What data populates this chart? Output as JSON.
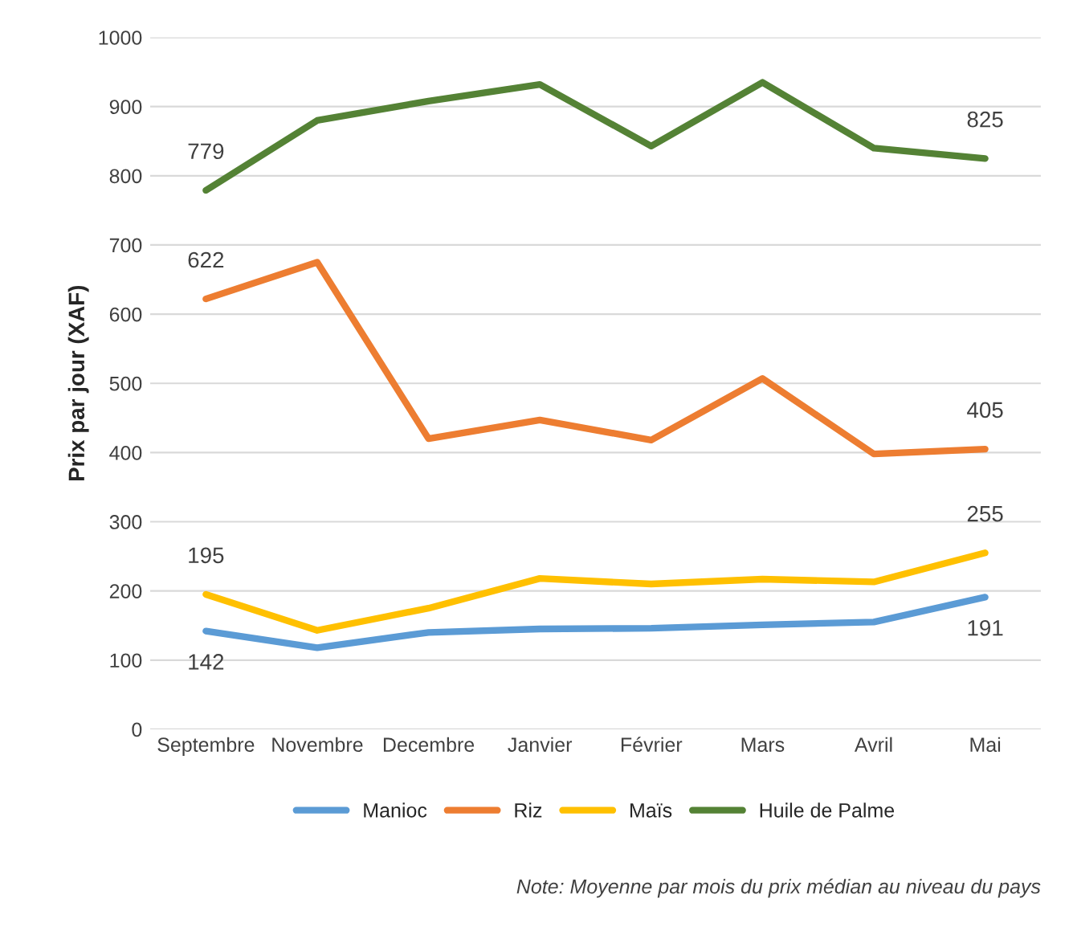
{
  "chart_data": {
    "type": "line",
    "ylabel": "Prix par jour (XAF)",
    "categories": [
      "Septembre",
      "Novembre",
      "Decembre",
      "Janvier",
      "Février",
      "Mars",
      "Avril",
      "Mai"
    ],
    "series": [
      {
        "name": "Manioc",
        "color": "#5b9bd5",
        "values": [
          142,
          118,
          140,
          145,
          146,
          151,
          155,
          191
        ],
        "value_labels": [
          "142",
          null,
          null,
          null,
          null,
          null,
          null,
          "191"
        ]
      },
      {
        "name": "Riz",
        "color": "#ed7d31",
        "values": [
          622,
          675,
          420,
          447,
          418,
          507,
          398,
          405
        ],
        "value_labels": [
          "622",
          null,
          null,
          null,
          null,
          null,
          null,
          "405"
        ]
      },
      {
        "name": "Maïs",
        "color": "#ffc000",
        "values": [
          195,
          143,
          175,
          218,
          210,
          217,
          213,
          255
        ],
        "value_labels": [
          "195",
          null,
          null,
          null,
          null,
          null,
          null,
          "255"
        ]
      },
      {
        "name": "Huile de Palme",
        "color": "#548235",
        "values": [
          779,
          880,
          908,
          932,
          843,
          935,
          840,
          825
        ],
        "value_labels": [
          "779",
          null,
          null,
          null,
          null,
          null,
          null,
          "825"
        ]
      }
    ],
    "ylim": [
      0,
      1000
    ],
    "yticks": [
      0,
      100,
      200,
      300,
      400,
      500,
      600,
      700,
      800,
      900,
      1000
    ],
    "grid": "y",
    "legend": "bottom",
    "marker": "none",
    "line_style": "solid",
    "annotations": [
      "Note: Moyenne par mois du prix médian au niveau du pays"
    ]
  }
}
